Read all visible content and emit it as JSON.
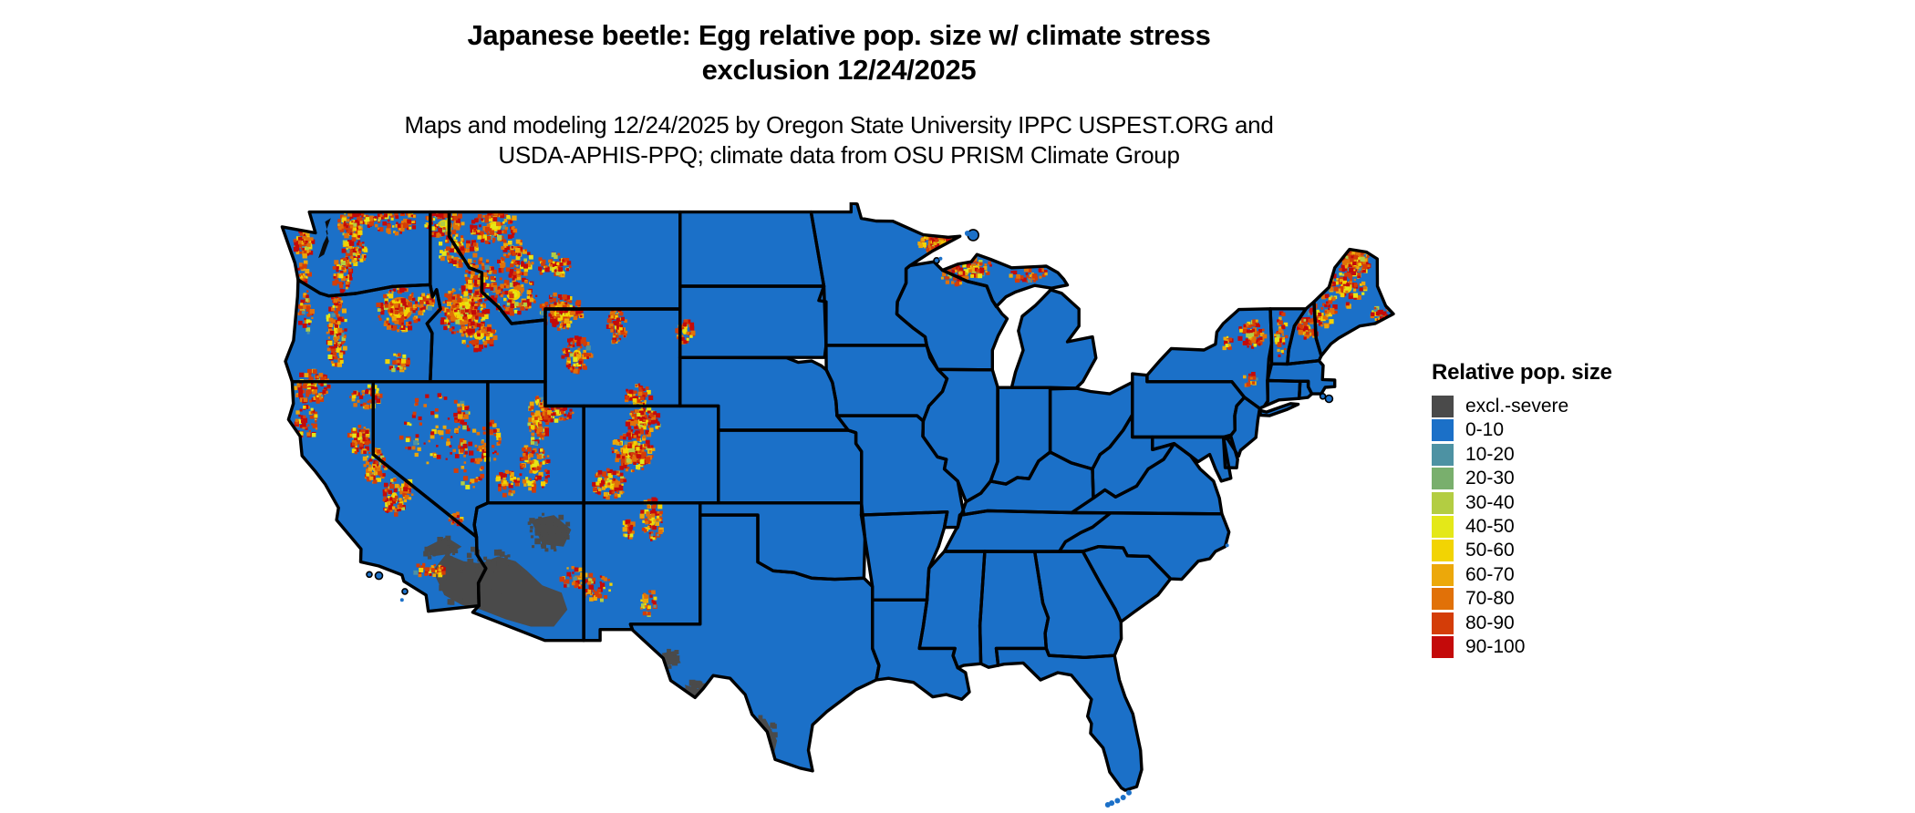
{
  "title": {
    "line1": "Japanese beetle: Egg relative pop. size w/ climate stress",
    "line2": "exclusion 12/24/2025"
  },
  "subtitle": {
    "line1": "Maps and modeling 12/24/2025 by Oregon State University IPPC USPEST.ORG and",
    "line2": "USDA-APHIS-PPQ; climate data from OSU PRISM Climate Group"
  },
  "legend": {
    "title": "Relative pop. size",
    "items": [
      {
        "label": "excl.-severe",
        "color": "#4a4a4a"
      },
      {
        "label": "0-10",
        "color": "#1b70c8"
      },
      {
        "label": "10-20",
        "color": "#4d92a3"
      },
      {
        "label": "20-30",
        "color": "#79af6d"
      },
      {
        "label": "30-40",
        "color": "#b3cd42"
      },
      {
        "label": "40-50",
        "color": "#e4e818"
      },
      {
        "label": "50-60",
        "color": "#f2d403"
      },
      {
        "label": "60-70",
        "color": "#eca80a"
      },
      {
        "label": "70-80",
        "color": "#e17108"
      },
      {
        "label": "80-90",
        "color": "#d43d08"
      },
      {
        "label": "90-100",
        "color": "#c40a0a"
      }
    ]
  },
  "map": {
    "colors": {
      "land": "#1b70c8",
      "state_border": "#000000",
      "water": "#ffffff",
      "excluded": "#4a4a4a",
      "inland_water": "#0b0b0b"
    }
  }
}
